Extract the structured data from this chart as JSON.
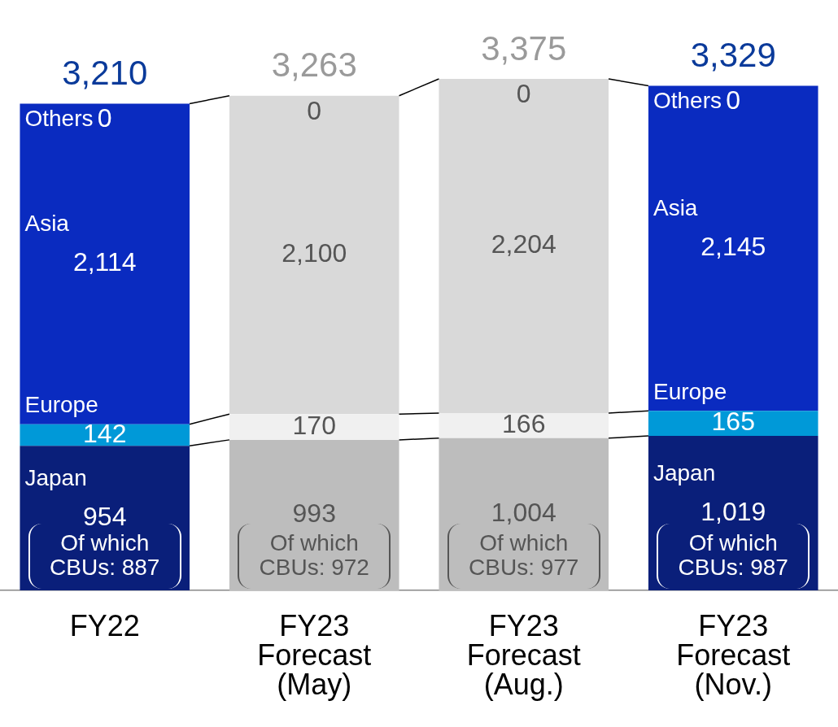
{
  "chart_data": {
    "type": "bar",
    "stacked": true,
    "categories": [
      "FY22",
      "FY23 Forecast (May)",
      "FY23 Forecast (Aug.)",
      "FY23 Forecast (Nov.)"
    ],
    "series": [
      {
        "name": "Japan",
        "colors": [
          "#0a1f7a",
          "#bdbdbd",
          "#bdbdbd",
          "#0a1f7a"
        ],
        "values": [
          954,
          993,
          1004,
          1019
        ],
        "value_labels": [
          "954",
          "993",
          "1,004",
          "1,019"
        ]
      },
      {
        "name": "Europe",
        "colors": [
          "#0099d8",
          "#f0f0f0",
          "#f0f0f0",
          "#0099d8"
        ],
        "values": [
          142,
          170,
          166,
          165
        ],
        "value_labels": [
          "142",
          "170",
          "166",
          "165"
        ]
      },
      {
        "name": "Asia",
        "colors": [
          "#0a2bc0",
          "#d9d9d9",
          "#d9d9d9",
          "#0a2bc0"
        ],
        "values": [
          2114,
          2100,
          2204,
          2145
        ],
        "value_labels": [
          "2,114",
          "2,100",
          "2,204",
          "2,145"
        ]
      },
      {
        "name": "Others",
        "colors": [
          "#0a2bc0",
          "#d9d9d9",
          "#d9d9d9",
          "#0a2bc0"
        ],
        "values": [
          0,
          0,
          0,
          0
        ],
        "value_labels": [
          "0",
          "0",
          "0",
          "0"
        ]
      }
    ],
    "totals": [
      "3,210",
      "3,263",
      "3,375",
      "3,329"
    ],
    "annotations": [
      "Of which CBUs: 887",
      "Of which CBUs: 972",
      "Of which CBUs: 977",
      "Of which CBUs: 987"
    ]
  }
}
